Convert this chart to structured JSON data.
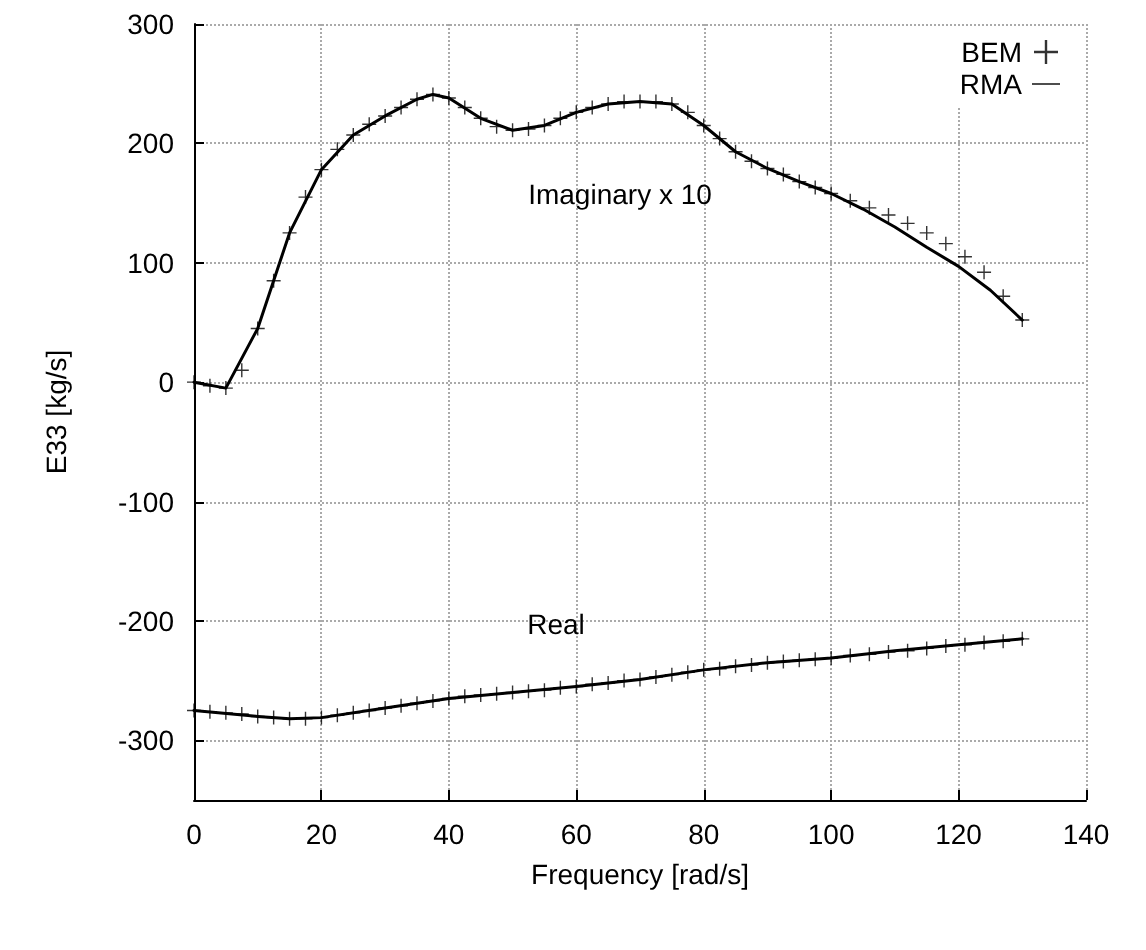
{
  "chart_data": {
    "type": "line",
    "xlabel": "Frequency [rad/s]",
    "ylabel": "E33 [kg/s]",
    "xlim": [
      0,
      140
    ],
    "xticks": [
      0,
      20,
      40,
      60,
      80,
      100,
      120,
      140
    ],
    "ylim": [
      -350,
      300
    ],
    "yticks": [
      -300,
      -200,
      -100,
      0,
      100,
      200,
      300
    ],
    "grid": true,
    "legend": "top right",
    "annotations": [
      "Imaginary x 10",
      "Real"
    ],
    "series": [
      {
        "name": "BEM",
        "type": "scatter",
        "marker": "cross",
        "color": "#000000",
        "x": [
          0,
          2.5,
          5,
          7.5,
          10,
          12.5,
          15,
          17.5,
          20,
          22.5,
          25,
          27.5,
          30,
          32.5,
          35,
          37.5,
          40,
          42.5,
          45,
          47.5,
          50,
          52.5,
          55,
          57.5,
          60,
          62.5,
          65,
          67.5,
          70,
          72.5,
          75,
          77.5,
          80,
          82.5,
          85,
          87.5,
          90,
          92.5,
          95,
          97.5,
          100,
          103,
          106,
          109,
          112,
          115,
          118,
          121,
          124,
          127,
          130
        ],
        "values": [
          0,
          -3,
          -5,
          10,
          45,
          85,
          125,
          155,
          178,
          195,
          207,
          216,
          223,
          230,
          237,
          241,
          238,
          230,
          221,
          214,
          211,
          212,
          215,
          221,
          226,
          230,
          233,
          235,
          235,
          235,
          233,
          226,
          215,
          204,
          193,
          185,
          179,
          174,
          168,
          163,
          158,
          152,
          146,
          140,
          133,
          125,
          116,
          105,
          92,
          72,
          52
        ]
      },
      {
        "name": "RMA",
        "marker": "none",
        "line_style": "solid",
        "color": "#000000",
        "x": [
          0,
          5,
          10,
          15,
          20,
          25,
          30,
          35,
          37.5,
          40,
          45,
          50,
          55,
          60,
          65,
          70,
          75,
          80,
          85,
          90,
          95,
          100,
          105,
          110,
          115,
          120,
          125,
          130
        ],
        "values": [
          0,
          -5,
          45,
          125,
          178,
          207,
          223,
          237,
          241,
          238,
          221,
          211,
          215,
          226,
          233,
          235,
          233,
          215,
          193,
          179,
          168,
          158,
          145,
          130,
          113,
          97,
          77,
          52
        ]
      },
      {
        "type": "scatter",
        "marker": "cross",
        "color": "#000000",
        "x": [
          0,
          2.5,
          5,
          7.5,
          10,
          12.5,
          15,
          17.5,
          20,
          22.5,
          25,
          27.5,
          30,
          32.5,
          35,
          37.5,
          40,
          42.5,
          45,
          47.5,
          50,
          52.5,
          55,
          57.5,
          60,
          62.5,
          65,
          67.5,
          70,
          72.5,
          75,
          77.5,
          80,
          82.5,
          85,
          87.5,
          90,
          92.5,
          95,
          97.5,
          100,
          103,
          106,
          109,
          112,
          115,
          118,
          121,
          124,
          127,
          130
        ],
        "values": [
          -275,
          -276,
          -277,
          -278,
          -280,
          -281,
          -282,
          -282,
          -281,
          -279,
          -277,
          -275,
          -273,
          -271,
          -269,
          -267,
          -265,
          -263,
          -262,
          -261,
          -260,
          -259,
          -258,
          -256,
          -255,
          -253,
          -252,
          -250,
          -249,
          -247,
          -245,
          -243,
          -241,
          -240,
          -238,
          -237,
          -235,
          -234,
          -233,
          -232,
          -231,
          -229,
          -228,
          -226,
          -225,
          -223,
          -221,
          -220,
          -218,
          -217,
          -215
        ]
      },
      {
        "marker": "none",
        "line_style": "solid",
        "color": "#000000",
        "x": [
          0,
          10,
          15,
          20,
          30,
          40,
          50,
          60,
          70,
          80,
          90,
          100,
          110,
          120,
          130
        ],
        "values": [
          -275,
          -280,
          -282,
          -281,
          -273,
          -265,
          -260,
          -255,
          -249,
          -241,
          -235,
          -231,
          -225,
          -220,
          -215
        ]
      }
    ]
  }
}
